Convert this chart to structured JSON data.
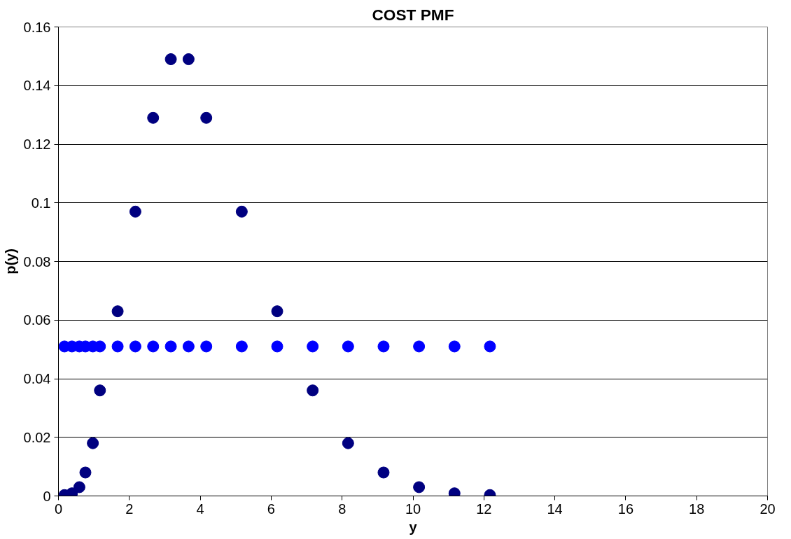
{
  "chart_data": {
    "type": "scatter",
    "title": "COST PMF",
    "xlabel": "y",
    "ylabel": "p(y)",
    "x": [
      0.17,
      0.38,
      0.59,
      0.76,
      0.97,
      1.17,
      1.67,
      2.17,
      2.67,
      3.17,
      3.67,
      4.17,
      5.17,
      6.17,
      7.17,
      8.17,
      9.17,
      10.17,
      11.17,
      12.17
    ],
    "series": [
      {
        "color": "#000080",
        "values": [
          0.0003,
          0.0009,
          0.003,
          0.008,
          0.018,
          0.036,
          0.063,
          0.097,
          0.129,
          0.149,
          0.149,
          0.129,
          0.097,
          0.063,
          0.036,
          0.018,
          0.008,
          0.003,
          0.0009,
          0.0003
        ]
      },
      {
        "color": "#0000ff",
        "values": [
          0.051,
          0.051,
          0.051,
          0.051,
          0.051,
          0.051,
          0.051,
          0.051,
          0.051,
          0.051,
          0.051,
          0.051,
          0.051,
          0.051,
          0.051,
          0.051,
          0.051,
          0.051,
          0.051,
          0.051
        ]
      }
    ],
    "xlim": [
      0,
      20
    ],
    "ylim": [
      0,
      0.16
    ],
    "xticks": [
      0,
      2,
      4,
      6,
      8,
      10,
      12,
      14,
      16,
      18,
      20
    ],
    "yticks": [
      0,
      0.02,
      0.04,
      0.06,
      0.08,
      0.1,
      0.12,
      0.14,
      0.16
    ],
    "grid": "y",
    "marker": "circle"
  }
}
